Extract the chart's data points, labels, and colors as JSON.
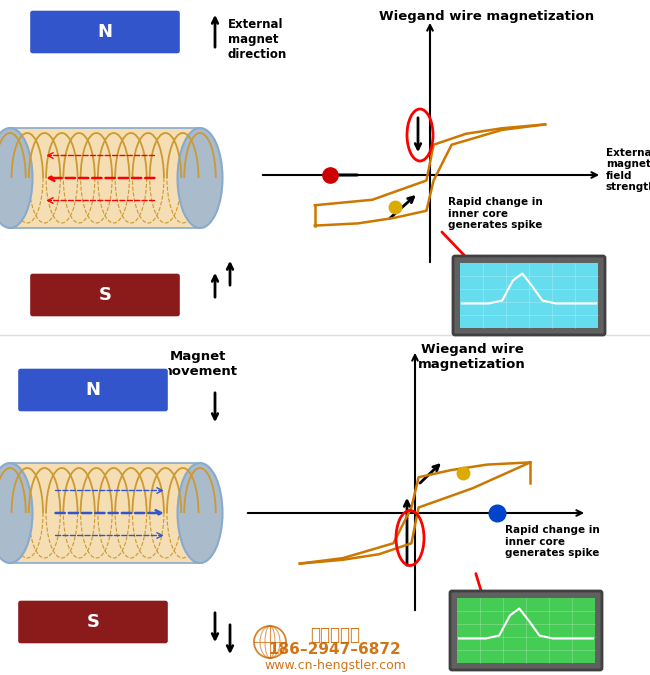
{
  "bg_color": "#ffffff",
  "top_panel": {
    "title1": "Wiegand wire magnetization",
    "n_magnet_color": "#3355cc",
    "s_magnet_color": "#8B1A1A",
    "n_label": "N",
    "s_label": "S",
    "ext_text": "External\nmagnet\ndirection",
    "axis_label_x": "External\nmagnetic\nfield\nstrength",
    "rapid_text": "Rapid change in\ninner core\ngenerates spike",
    "dot_red_color": "#cc0000",
    "dot_yellow_color": "#ddaa00",
    "hysteresis_color": "#cc7700"
  },
  "bottom_panel": {
    "title": "Wiegand wire\nmagnetization",
    "n_magnet_color": "#3355cc",
    "s_magnet_color": "#8B1A1A",
    "n_label": "N",
    "s_label": "S",
    "move_text": "Magnet\nmovement",
    "rapid_text": "Rapid change in\ninner core\ngenerates spike",
    "dot_yellow_color": "#ddaa00",
    "dot_blue_color": "#0044cc",
    "hysteresis_color": "#cc7700"
  },
  "watermark_line1": "西安德伍拓",
  "watermark_line2": "186–2947–6872",
  "watermark_line3": "www.cn-hengstler.com"
}
